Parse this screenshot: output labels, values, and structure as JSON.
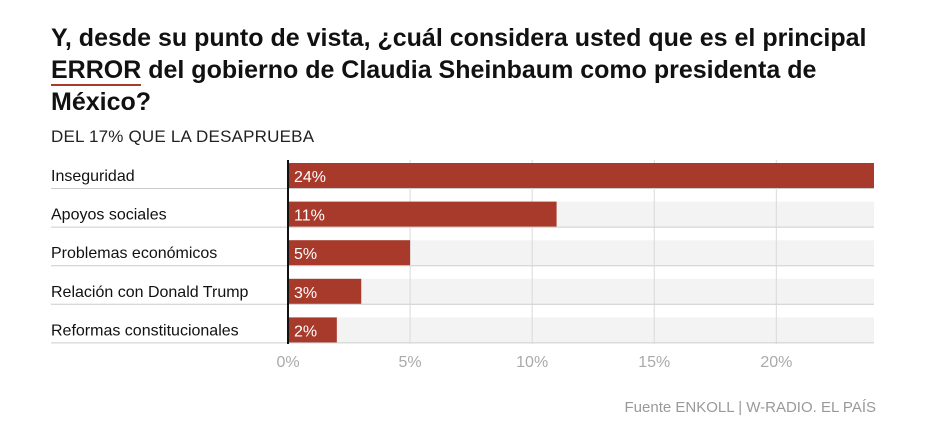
{
  "title_before": "Y, desde su punto de vista, ¿cuál considera usted que es el principal ",
  "title_highlight": "ERROR",
  "title_after": " del gobierno de Claudia Sheinbaum como presidenta de México?",
  "subtitle": "DEL 17% QUE LA DESAPRUEBA",
  "source": "Fuente ENKOLL | W-RADIO. EL PAÍS",
  "colors": {
    "bar": "#a83a2c",
    "track": "#f3f3f3",
    "grid": "#d9d9d9",
    "axis": "#111111",
    "highlight_underline": "#a83a2c"
  },
  "chart_data": {
    "type": "bar",
    "orientation": "horizontal",
    "categories": [
      "Inseguridad",
      "Apoyos sociales",
      "Problemas económicos",
      "Relación con Donald Trump",
      "Reformas constitucionales"
    ],
    "values": [
      24,
      11,
      5,
      3,
      2
    ],
    "value_labels": [
      "24%",
      "11%",
      "5%",
      "3%",
      "2%"
    ],
    "x_ticks": [
      0,
      5,
      10,
      15,
      20
    ],
    "x_tick_labels": [
      "0%",
      "5%",
      "10%",
      "15%",
      "20%"
    ],
    "xlim": [
      0,
      24
    ],
    "grid": true
  }
}
